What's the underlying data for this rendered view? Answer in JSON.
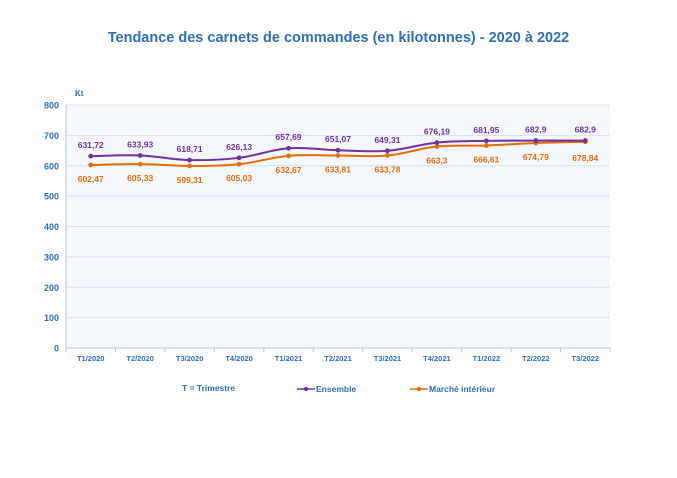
{
  "chart_data": {
    "type": "line",
    "title": "Tendance des carnets de commandes (en kilotonnes) - 2020 à 2022",
    "ylabel": "Kt",
    "xlabel": "",
    "ylim": [
      0,
      800
    ],
    "yticks": [
      "0",
      "100",
      "200",
      "300",
      "400",
      "500",
      "600",
      "700",
      "800"
    ],
    "categories": [
      "T1/2020",
      "T2/2020",
      "T3/2020",
      "T4/2020",
      "T1/2021",
      "T2/2021",
      "T3/2021",
      "T4/2021",
      "T1/2022",
      "T2/2022",
      "T3/2022"
    ],
    "grid": true,
    "legend_position": "bottom",
    "note": "T = Trimestre",
    "series": [
      {
        "name": "Ensemble",
        "color": "#7030a0",
        "values": [
          631.72,
          633.93,
          618.71,
          626.13,
          657.69,
          651.07,
          649.31,
          676.19,
          681.95,
          682.9,
          682.9
        ],
        "labels": [
          "631,72",
          "633,93",
          "618,71",
          "626,13",
          "657,69",
          "651,07",
          "649,31",
          "676,19",
          "681,95",
          "682,9",
          "682,9"
        ]
      },
      {
        "name": "Marché  intérieur",
        "color": "#e46c0a",
        "values": [
          602.47,
          605.33,
          599.31,
          605.03,
          632.67,
          633.81,
          633.78,
          663.3,
          666.61,
          674.79,
          678.84
        ],
        "labels": [
          "602,47",
          "605,33",
          "599,31",
          "605,03",
          "632,67",
          "633,81",
          "633,78",
          "663,3",
          "666,61",
          "674,79",
          "678,84"
        ]
      }
    ]
  }
}
